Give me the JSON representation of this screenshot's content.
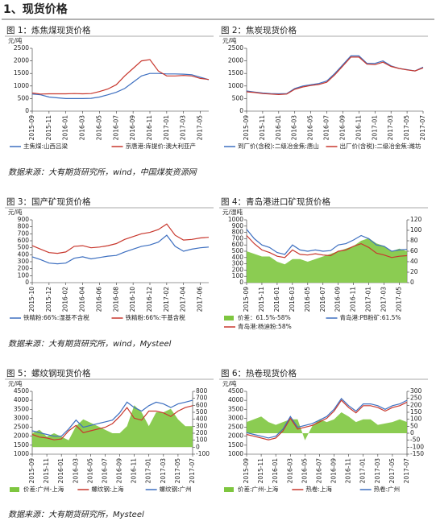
{
  "header": {
    "title": "1、现货价格"
  },
  "sources": [
    "数据来源：大有期货研究所，wind，中国煤炭资源网",
    "数据来源：大有期货研究所，wind，Mysteel",
    "数据来源：大有期货研究所，Mysteel"
  ],
  "chart_data": [
    {
      "type": "line",
      "title": "图 1：炼焦煤现货价格",
      "y_unit": "元/吨",
      "categories": [
        "2015-09",
        null,
        "2015-11",
        null,
        "2016-01",
        null,
        "2016-03",
        null,
        "2016-05",
        null,
        "2016-07",
        null,
        "2016-09",
        null,
        "2016-11",
        null,
        "2017-01",
        null,
        "2017-03",
        null,
        "2017-05",
        null
      ],
      "ylim": [
        0,
        2500
      ],
      "yticks": [
        0,
        500,
        1000,
        1500,
        2000,
        2500
      ],
      "series": [
        {
          "name": "主焦煤:山西吕梁",
          "color": "#3d6fc0",
          "values": [
            680,
            650,
            560,
            530,
            500,
            500,
            500,
            510,
            560,
            650,
            750,
            900,
            1150,
            1400,
            1500,
            1500,
            1480,
            1480,
            1470,
            1450,
            1350,
            1250
          ]
        },
        {
          "name": "京唐港:库提价:澳大利亚产",
          "color": "#c8372d",
          "values": [
            720,
            680,
            690,
            690,
            690,
            700,
            690,
            700,
            780,
            880,
            1050,
            1400,
            1700,
            2000,
            2050,
            1600,
            1400,
            1400,
            1420,
            1400,
            1300,
            1260
          ]
        }
      ]
    },
    {
      "type": "line",
      "title": "图 2：焦炭现货价格",
      "y_unit": "元/吨",
      "categories": [
        "2015-09",
        null,
        "2015-11",
        null,
        "2016-01",
        null,
        "2016-03",
        null,
        "2016-05",
        null,
        "2016-07",
        null,
        "2016-09",
        null,
        "2016-11",
        null,
        "2017-01",
        null,
        "2017-03",
        null,
        "2017-05",
        null,
        "2017-07"
      ],
      "ylim": [
        0,
        2500
      ],
      "yticks": [
        0,
        500,
        1000,
        1500,
        2000,
        2500
      ],
      "series": [
        {
          "name": "到厂价(含税):二级冶金焦:唐山",
          "color": "#3d6fc0",
          "values": [
            800,
            760,
            720,
            700,
            690,
            700,
            900,
            1000,
            1050,
            1100,
            1200,
            1500,
            1850,
            2200,
            2200,
            1900,
            1900,
            2000,
            1800,
            1700,
            1650,
            1600,
            1750
          ]
        },
        {
          "name": "出厂价(含税):二级冶金焦:潍坊",
          "color": "#c8372d",
          "values": [
            770,
            740,
            700,
            680,
            660,
            680,
            870,
            960,
            1020,
            1060,
            1150,
            1450,
            1800,
            2150,
            2150,
            1870,
            1850,
            1950,
            1780,
            1700,
            1640,
            1600,
            1720
          ]
        }
      ]
    },
    {
      "type": "line",
      "title": "图 3：国产矿现货价格",
      "y_unit": "元/吨",
      "categories": [
        "2015-10",
        null,
        "2015-12",
        null,
        "2016-02",
        null,
        "2016-04",
        null,
        "2016-06",
        null,
        "2016-08",
        null,
        "2016-10",
        null,
        "2016-12",
        null,
        "2017-02",
        null,
        "2017-04",
        null,
        "2017-06",
        null
      ],
      "ylim": [
        0,
        900
      ],
      "yticks": [
        0,
        100,
        200,
        300,
        400,
        500,
        600,
        700,
        800,
        900
      ],
      "series": [
        {
          "name": "铁精粉:66%:湿基不含税",
          "color": "#3d6fc0",
          "values": [
            370,
            330,
            280,
            270,
            280,
            350,
            370,
            340,
            360,
            380,
            390,
            440,
            480,
            520,
            540,
            580,
            680,
            520,
            450,
            480,
            500,
            510
          ]
        },
        {
          "name": "铁精粉:66%:干基含税",
          "color": "#c8372d",
          "values": [
            530,
            480,
            430,
            420,
            440,
            520,
            530,
            500,
            510,
            530,
            560,
            620,
            660,
            700,
            720,
            760,
            840,
            680,
            610,
            620,
            640,
            650
          ]
        }
      ]
    },
    {
      "type": "line",
      "title": "图 4：青岛港进口矿现货价格",
      "y_unit": "元/湿吨",
      "categories": [
        "2015-09",
        null,
        "2015-11",
        null,
        "2016-01",
        null,
        "2016-03",
        null,
        "2016-05",
        null,
        "2016-07",
        null,
        "2016-09",
        null,
        "2016-11",
        null,
        "2017-01",
        null,
        "2017-03",
        null,
        "2017-05",
        null
      ],
      "ylim": [
        0,
        1000
      ],
      "yticks": [
        0,
        100,
        200,
        300,
        400,
        500,
        600,
        700,
        800,
        900,
        1000
      ],
      "y2lim": [
        0,
        120
      ],
      "y2ticks": [
        0,
        20,
        40,
        60,
        80,
        100,
        120
      ],
      "series": [
        {
          "name": "价差：61.5%-58%",
          "color": "#7ec63f",
          "type": "area",
          "axis": "y2",
          "values": [
            60,
            55,
            50,
            50,
            40,
            35,
            45,
            45,
            40,
            45,
            50,
            55,
            60,
            65,
            70,
            80,
            85,
            75,
            70,
            60,
            65,
            60
          ]
        },
        {
          "name": "青岛港:PB粉矿:61.5%",
          "color": "#3d6fc0",
          "values": [
            850,
            700,
            600,
            560,
            480,
            450,
            600,
            520,
            500,
            520,
            500,
            510,
            600,
            620,
            680,
            750,
            700,
            600,
            580,
            500,
            520,
            530
          ]
        },
        {
          "name": "青岛港:杨迪粉:58%",
          "color": "#c8372d",
          "values": [
            750,
            620,
            520,
            480,
            420,
            400,
            520,
            450,
            440,
            460,
            440,
            430,
            500,
            520,
            580,
            620,
            560,
            470,
            440,
            400,
            420,
            430
          ]
        }
      ]
    },
    {
      "type": "line",
      "title": "图 5：螺纹钢现货价格",
      "y_unit": "元/吨",
      "categories": [
        "2015-09",
        null,
        "2015-11",
        null,
        "2016-01",
        null,
        "2016-03",
        null,
        "2016-05",
        null,
        "2016-07",
        null,
        "2016-09",
        null,
        "2016-11",
        null,
        "2017-01",
        null,
        "2017-03",
        null,
        "2017-05",
        null,
        "2017-07"
      ],
      "ylim": [
        1000,
        4500
      ],
      "yticks": [
        1000,
        1500,
        2000,
        2500,
        3000,
        3500,
        4000,
        4500
      ],
      "y2lim": [
        -100,
        800
      ],
      "y2ticks": [
        -100,
        0,
        100,
        200,
        300,
        400,
        500,
        600,
        700,
        800
      ],
      "series": [
        {
          "name": "价差:广州-上海",
          "color": "#7ec63f",
          "type": "area",
          "axis": "y2",
          "values": [
            200,
            250,
            150,
            200,
            150,
            100,
            300,
            400,
            350,
            300,
            250,
            200,
            200,
            300,
            600,
            500,
            300,
            500,
            500,
            550,
            400,
            300,
            300
          ]
        },
        {
          "name": "螺纹钢:上海",
          "color": "#c8372d",
          "values": [
            2100,
            1950,
            1900,
            1800,
            1850,
            2300,
            2600,
            2200,
            2300,
            2400,
            2500,
            2700,
            3100,
            3600,
            3000,
            2900,
            3400,
            3400,
            3300,
            3100,
            3400,
            3600,
            3700
          ]
        },
        {
          "name": "螺纹钢:广州",
          "color": "#3d6fc0",
          "values": [
            2300,
            2200,
            2100,
            2000,
            2000,
            2400,
            2900,
            2500,
            2600,
            2700,
            2800,
            2900,
            3300,
            3900,
            3600,
            3400,
            3700,
            3900,
            3800,
            3600,
            3800,
            3900,
            4000
          ]
        }
      ]
    },
    {
      "type": "line",
      "title": "图 6：热卷现货价格",
      "y_unit": "元/吨",
      "categories": [
        "2015-09",
        null,
        "2015-11",
        null,
        "2016-01",
        null,
        "2016-03",
        null,
        "2016-05",
        null,
        "2016-07",
        null,
        "2016-09",
        null,
        "2016-11",
        null,
        "2017-01",
        null,
        "2017-03",
        null,
        "2017-05",
        null,
        "2017-07"
      ],
      "ylim": [
        1000,
        4500
      ],
      "yticks": [
        1000,
        1500,
        2000,
        2500,
        3000,
        3500,
        4000,
        4500
      ],
      "y2lim": [
        -150,
        300
      ],
      "y2ticks": [
        -150,
        -100,
        -50,
        0,
        50,
        100,
        150,
        200,
        250,
        300
      ],
      "series": [
        {
          "name": "价差:广州-上海",
          "color": "#7ec63f",
          "type": "area",
          "axis": "y2",
          "values": [
            80,
            100,
            120,
            80,
            60,
            80,
            100,
            100,
            -50,
            50,
            100,
            80,
            100,
            150,
            120,
            80,
            100,
            100,
            60,
            70,
            80,
            100,
            80
          ]
        },
        {
          "name": "热卷:上海",
          "color": "#c8372d",
          "values": [
            2100,
            2000,
            1900,
            1800,
            1900,
            2300,
            3000,
            2400,
            2500,
            2600,
            2800,
            3000,
            3400,
            4000,
            3600,
            3300,
            3700,
            3700,
            3600,
            3400,
            3600,
            3700,
            3900
          ]
        },
        {
          "name": "热卷:广州",
          "color": "#3d6fc0",
          "values": [
            2200,
            2100,
            2000,
            1900,
            2000,
            2400,
            3100,
            2500,
            2600,
            2700,
            2900,
            3100,
            3500,
            4100,
            3700,
            3400,
            3800,
            3800,
            3700,
            3500,
            3700,
            3800,
            4000
          ]
        }
      ]
    }
  ]
}
